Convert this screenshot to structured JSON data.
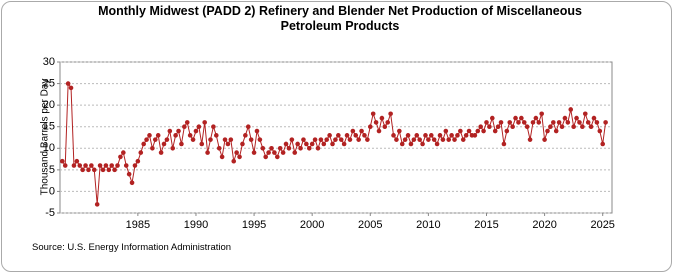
{
  "chart_data": {
    "type": "line",
    "title": "Monthly Midwest (PADD 2) Refinery and Blender Net Production of Miscellaneous Petroleum Products",
    "y_label": "Thousand Barrels per Day",
    "source": "Source: U.S. Energy Information Administration",
    "xlim": [
      1978.3,
      2025.8
    ],
    "ylim": [
      -5,
      30
    ],
    "xticks": [
      1985,
      1990,
      1995,
      2000,
      2005,
      2010,
      2015,
      2020,
      2025
    ],
    "yticks": [
      -5,
      0,
      5,
      10,
      15,
      20,
      25,
      30
    ],
    "grid": true,
    "x": [
      1978.5,
      1978.75,
      1979,
      1979.25,
      1979.5,
      1979.75,
      1980,
      1980.25,
      1980.5,
      1980.75,
      1981,
      1981.25,
      1981.5,
      1981.75,
      1982,
      1982.25,
      1982.5,
      1982.75,
      1983,
      1983.25,
      1983.5,
      1983.75,
      1984,
      1984.25,
      1984.5,
      1984.75,
      1985,
      1985.25,
      1985.5,
      1985.75,
      1986,
      1986.25,
      1986.5,
      1986.75,
      1987,
      1987.25,
      1987.5,
      1987.75,
      1988,
      1988.25,
      1988.5,
      1988.75,
      1989,
      1989.25,
      1989.5,
      1989.75,
      1990,
      1990.25,
      1990.5,
      1990.75,
      1991,
      1991.25,
      1991.5,
      1991.75,
      1992,
      1992.25,
      1992.5,
      1992.75,
      1993,
      1993.25,
      1993.5,
      1993.75,
      1994,
      1994.25,
      1994.5,
      1994.75,
      1995,
      1995.25,
      1995.5,
      1995.75,
      1996,
      1996.25,
      1996.5,
      1996.75,
      1997,
      1997.25,
      1997.5,
      1997.75,
      1998,
      1998.25,
      1998.5,
      1998.75,
      1999,
      1999.25,
      1999.5,
      1999.75,
      2000,
      2000.25,
      2000.5,
      2000.75,
      2001,
      2001.25,
      2001.5,
      2001.75,
      2002,
      2002.25,
      2002.5,
      2002.75,
      2003,
      2003.25,
      2003.5,
      2003.75,
      2004,
      2004.25,
      2004.5,
      2004.75,
      2005,
      2005.25,
      2005.5,
      2005.75,
      2006,
      2006.25,
      2006.5,
      2006.75,
      2007,
      2007.25,
      2007.5,
      2007.75,
      2008,
      2008.25,
      2008.5,
      2008.75,
      2009,
      2009.25,
      2009.5,
      2009.75,
      2010,
      2010.25,
      2010.5,
      2010.75,
      2011,
      2011.25,
      2011.5,
      2011.75,
      2012,
      2012.25,
      2012.5,
      2012.75,
      2013,
      2013.25,
      2013.5,
      2013.75,
      2014,
      2014.25,
      2014.5,
      2014.75,
      2015,
      2015.25,
      2015.5,
      2015.75,
      2016,
      2016.25,
      2016.5,
      2016.75,
      2017,
      2017.25,
      2017.5,
      2017.75,
      2018,
      2018.25,
      2018.5,
      2018.75,
      2019,
      2019.25,
      2019.5,
      2019.75,
      2020,
      2020.25,
      2020.5,
      2020.75,
      2021,
      2021.25,
      2021.5,
      2021.75,
      2022,
      2022.25,
      2022.5,
      2022.75,
      2023,
      2023.25,
      2023.5,
      2023.75,
      2024,
      2024.25,
      2024.5,
      2024.75,
      2025,
      2025.25
    ],
    "series": [
      {
        "color": "#b22222",
        "values": [
          7,
          6,
          25,
          24,
          6,
          7,
          6,
          5,
          6,
          5,
          6,
          5,
          -3,
          6,
          5,
          6,
          5,
          6,
          5,
          6,
          8,
          9,
          6,
          4,
          2,
          6,
          7,
          9,
          11,
          12,
          13,
          10,
          12,
          13,
          9,
          11,
          12,
          14,
          10,
          13,
          14,
          11,
          15,
          16,
          13,
          12,
          14,
          15,
          11,
          16,
          9,
          12,
          15,
          13,
          10,
          8,
          12,
          11,
          12,
          7,
          9,
          8,
          11,
          13,
          15,
          12,
          9,
          14,
          12,
          10,
          8,
          9,
          10,
          9,
          8,
          10,
          9,
          11,
          10,
          12,
          9,
          11,
          10,
          12,
          11,
          10,
          11,
          12,
          10,
          12,
          11,
          12,
          13,
          11,
          12,
          13,
          12,
          11,
          13,
          12,
          14,
          13,
          12,
          14,
          13,
          12,
          15,
          18,
          16,
          14,
          17,
          15,
          16,
          18,
          13,
          12,
          14,
          11,
          12,
          13,
          11,
          12,
          13,
          12,
          11,
          13,
          12,
          13,
          12,
          11,
          13,
          12,
          14,
          12,
          13,
          12,
          13,
          14,
          12,
          13,
          14,
          13,
          13,
          14,
          15,
          14,
          16,
          15,
          17,
          14,
          15,
          16,
          11,
          14,
          16,
          15,
          17,
          16,
          17,
          16,
          15,
          12,
          16,
          17,
          16,
          18,
          12,
          14,
          15,
          16,
          14,
          16,
          15,
          17,
          16,
          19,
          15,
          17,
          16,
          15,
          18,
          16,
          15,
          17,
          16,
          14,
          11,
          16
        ]
      }
    ]
  }
}
